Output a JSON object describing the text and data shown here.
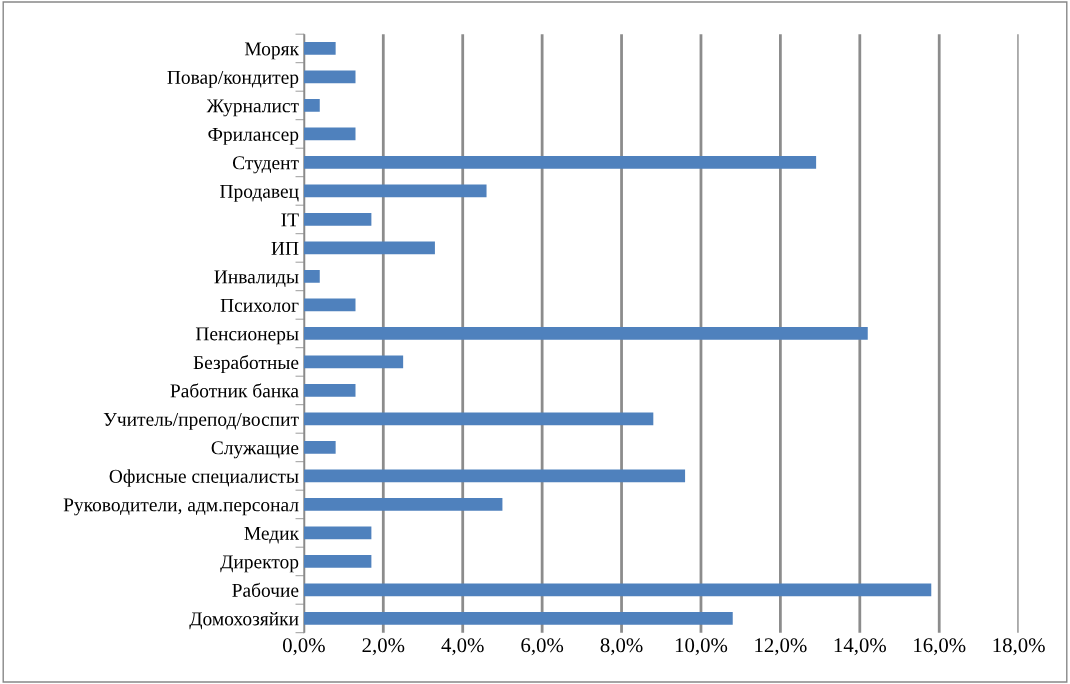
{
  "chart_data": {
    "type": "bar",
    "orientation": "horizontal",
    "categories": [
      "Моряк",
      "Повар/кондитер",
      "Журналист",
      "Фрилансер",
      "Студент",
      "Продавец",
      "IT",
      "ИП",
      "Инвалиды",
      "Психолог",
      "Пенсионеры",
      "Безработные",
      "Работник банка",
      "Учитель/препод/воспит",
      "Служащие",
      "Офисные специалисты",
      "Руководители, адм.персонал",
      "Медик",
      "Директор",
      "Рабочие",
      "Домохозяйки"
    ],
    "values": [
      0.8,
      1.3,
      0.4,
      1.3,
      12.9,
      4.6,
      1.7,
      3.3,
      0.4,
      1.3,
      14.2,
      2.5,
      1.3,
      8.8,
      0.8,
      9.6,
      5.0,
      1.7,
      1.7,
      15.8,
      10.8
    ],
    "color": "#4f81bd",
    "xlim": [
      0,
      18
    ],
    "xticks": [
      {
        "value": 0,
        "label": "0,0%"
      },
      {
        "value": 2,
        "label": "2,0%"
      },
      {
        "value": 4,
        "label": "4,0%"
      },
      {
        "value": 6,
        "label": "6,0%"
      },
      {
        "value": 8,
        "label": "8,0%"
      },
      {
        "value": 10,
        "label": "10,0%"
      },
      {
        "value": 12,
        "label": "12,0%"
      },
      {
        "value": 14,
        "label": "14,0%"
      },
      {
        "value": 16,
        "label": "16,0%"
      },
      {
        "value": 18,
        "label": "18,0%"
      }
    ],
    "grid": "x",
    "legend": false
  }
}
